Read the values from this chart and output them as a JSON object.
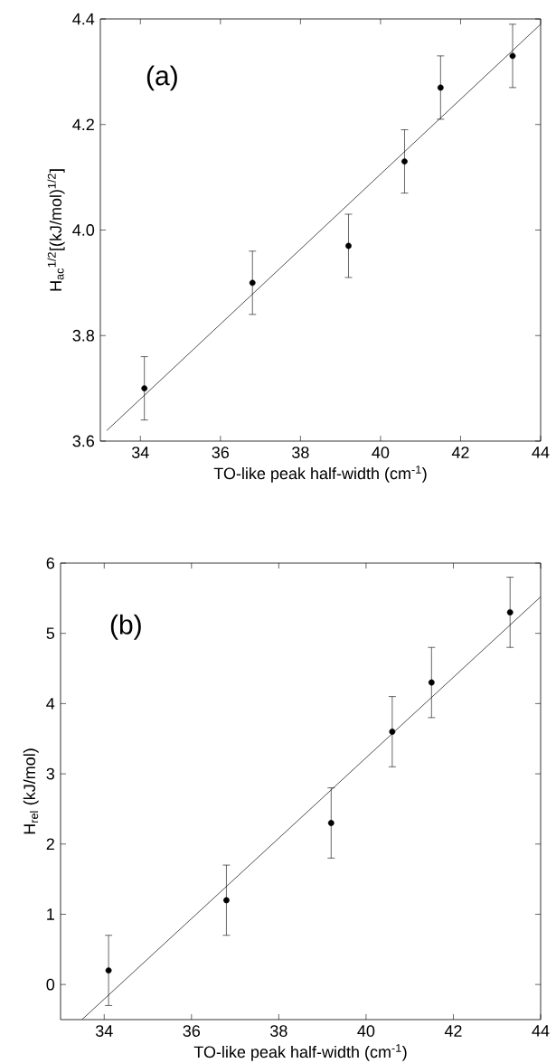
{
  "chart_data": [
    {
      "type": "scatter",
      "xlabel": "TO-like peak half-width (cm$^{-1}$)",
      "ylabel": "H$_{ac}$$^{1/2}$[(kJ/mol)$^{1/2}$]",
      "annotations": [
        "(a)"
      ],
      "xlim": [
        33,
        44
      ],
      "xticks": [
        34,
        36,
        38,
        40,
        42,
        44
      ],
      "ylim": [
        3.6,
        4.4
      ],
      "yticks": [
        {
          "value": 3.6,
          "label": "3.6"
        },
        {
          "value": 3.8,
          "label": "3.8"
        },
        {
          "value": 4.0,
          "label": "4.0"
        },
        {
          "value": 4.2,
          "label": "4.2"
        },
        {
          "value": 4.4,
          "label": "4.4"
        }
      ],
      "series": [
        {
          "color": "#000000",
          "marker": "circle",
          "x": [
            34.1,
            36.8,
            39.2,
            40.6,
            41.5,
            43.3
          ],
          "values": [
            3.7,
            3.9,
            3.97,
            4.13,
            4.27,
            4.33
          ],
          "errors": [
            0.06,
            0.06,
            0.06,
            0.06,
            0.06,
            0.06
          ]
        },
        {
          "type": "line",
          "color": "#000000",
          "marker": "none",
          "x": [
            33.16,
            44
          ],
          "values": [
            3.62,
            4.39
          ]
        }
      ]
    },
    {
      "type": "scatter",
      "xlabel": "TO-like peak half-width (cm$^{-1}$)",
      "ylabel": "H$_{rel}$ (kJ/mol)",
      "annotations": [
        "(b)"
      ],
      "xlim": [
        33,
        44
      ],
      "xticks": [
        34,
        36,
        38,
        40,
        42,
        44
      ],
      "ylim": [
        -0.5,
        6
      ],
      "yticks": [
        0,
        1,
        2,
        3,
        4,
        5,
        6
      ],
      "series": [
        {
          "color": "#000000",
          "marker": "circle",
          "x": [
            34.1,
            36.8,
            39.2,
            40.6,
            41.5,
            43.3
          ],
          "values": [
            0.2,
            1.2,
            2.3,
            3.6,
            4.3,
            5.3
          ],
          "errors": [
            0.5,
            0.5,
            0.5,
            0.5,
            0.5,
            0.5
          ]
        },
        {
          "type": "line",
          "color": "#000000",
          "marker": "none",
          "x": [
            33.49,
            44
          ],
          "values": [
            -0.5,
            5.52
          ]
        }
      ]
    }
  ]
}
